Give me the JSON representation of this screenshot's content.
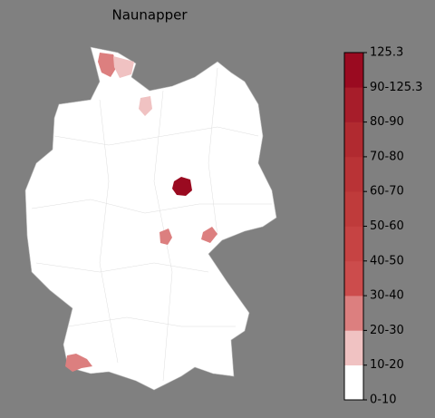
{
  "title": "Naunapper",
  "colorbar": {
    "labels": [
      "0-10",
      "10-20",
      "20-30",
      "30-40",
      "40-50",
      "50-60",
      "60-70",
      "70-80",
      "80-90",
      "90-125.3",
      "125.3"
    ],
    "colors": [
      "#ffffff",
      "#f0c2c2",
      "#dc7f7f",
      "#cc4c4c",
      "#c64343",
      "#bf3b3b",
      "#b93336",
      "#b12a30",
      "#a71d2a",
      "#9a0a20"
    ]
  }
}
